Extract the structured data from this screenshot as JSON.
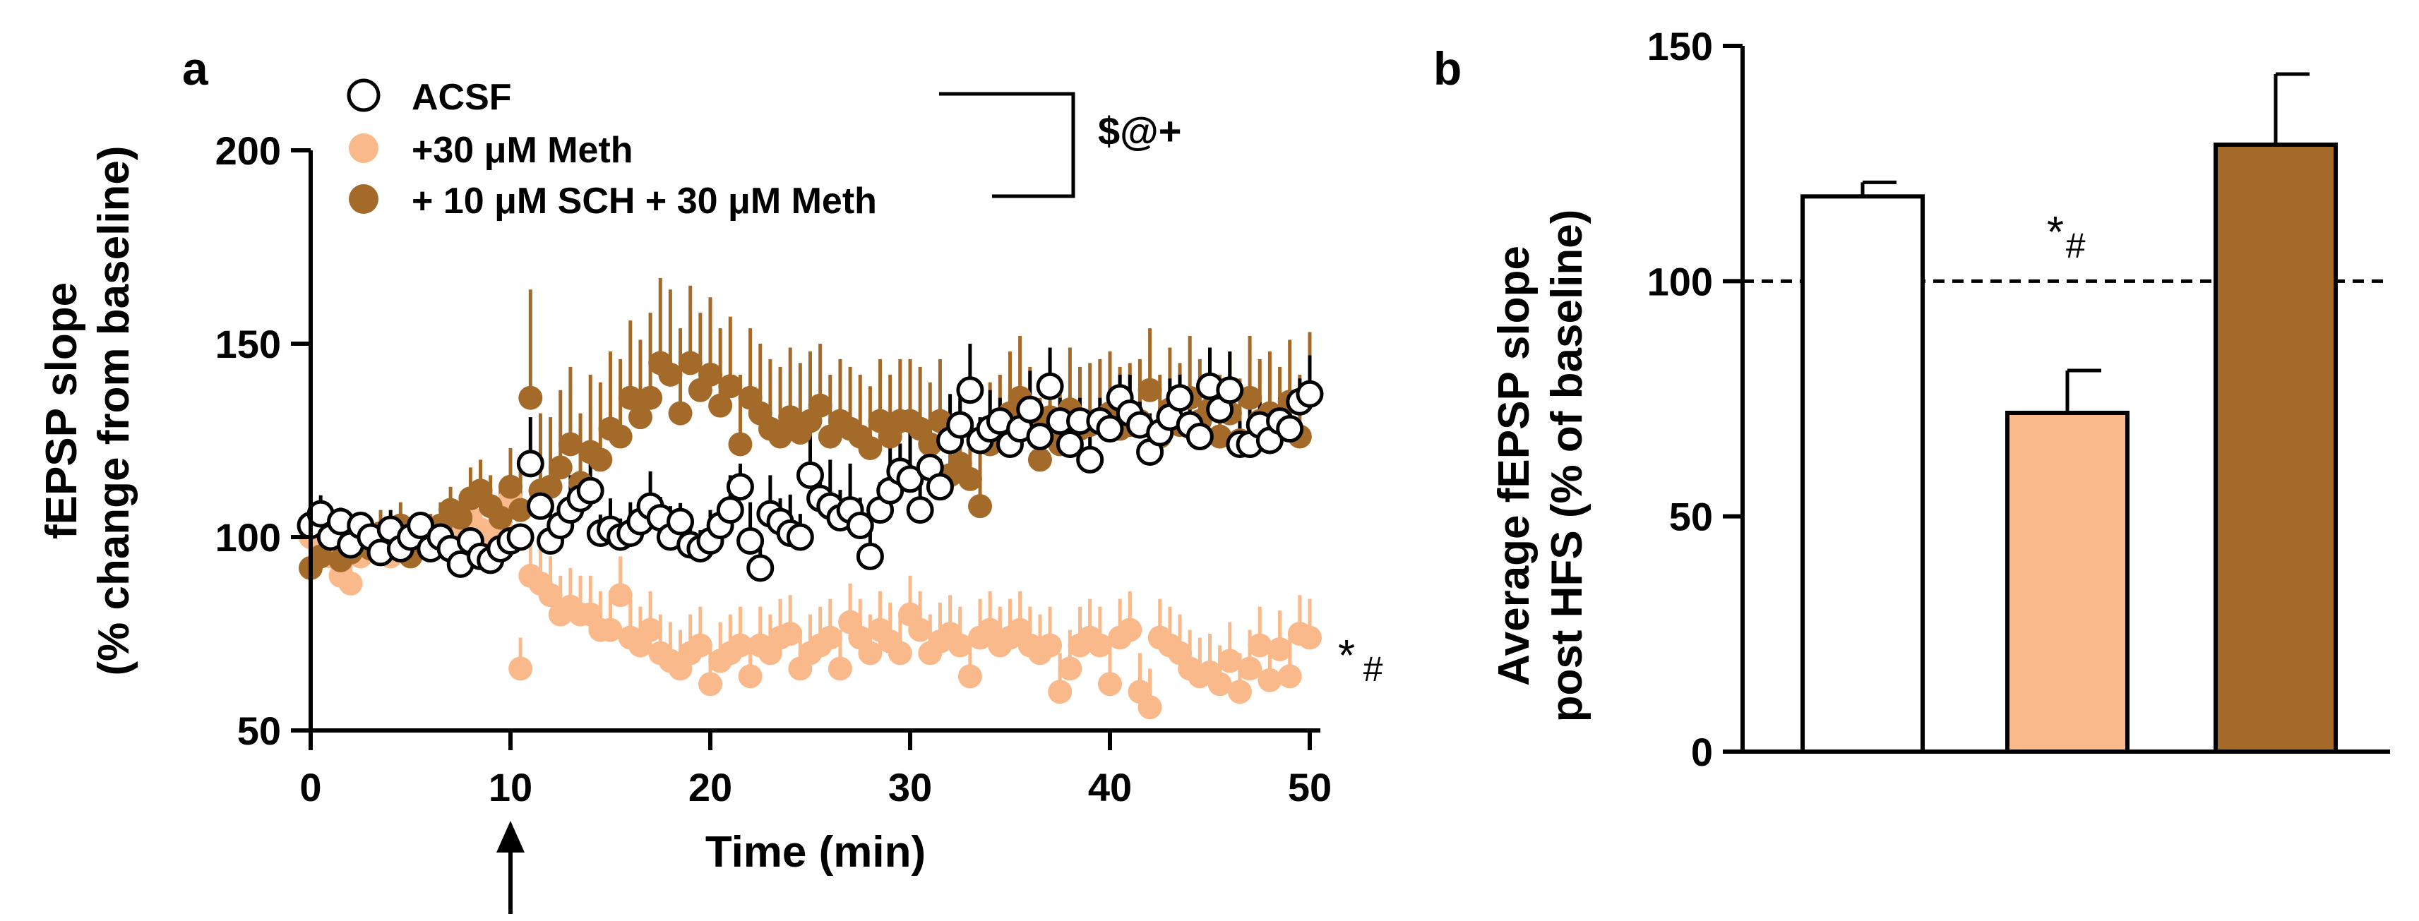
{
  "chart_data": [
    {
      "panel_label": "a",
      "type": "scatter",
      "xlabel": "Time (min)",
      "ylabel_line1": "fEPSP slope",
      "ylabel_line2": "(% change from baseline)",
      "xlim": [
        0,
        50
      ],
      "ylim": [
        50,
        200
      ],
      "xticks": [
        "0",
        "10",
        "20",
        "30",
        "40",
        "50"
      ],
      "yticks": [
        "50",
        "100",
        "150",
        "200"
      ],
      "arrow_at_x": 10,
      "stats_bracket_label": "$@+",
      "end_annotation": {
        "series": "+30 μM Meth",
        "star": "*",
        "hash": "#"
      },
      "series": [
        {
          "name": "ACSF",
          "legend": "ACSF",
          "fill": "#ffffff",
          "stroke": "#000000",
          "error_color": "#000000",
          "x": [
            0,
            0.5,
            1,
            1.5,
            2,
            2.5,
            3,
            3.5,
            4,
            4.5,
            5,
            5.5,
            6,
            6.5,
            7,
            7.5,
            8,
            8.5,
            9,
            9.5,
            10,
            10.5,
            11,
            11.5,
            12,
            12.5,
            13,
            13.5,
            14,
            14.5,
            15,
            15.5,
            16,
            16.5,
            17,
            17.5,
            18,
            18.5,
            19,
            19.5,
            20,
            20.5,
            21,
            21.5,
            22,
            22.5,
            23,
            23.5,
            24,
            24.5,
            25,
            25.5,
            26,
            26.5,
            27,
            27.5,
            28,
            28.5,
            29,
            29.5,
            30,
            30.5,
            31,
            31.5,
            32,
            32.5,
            33,
            33.5,
            34,
            34.5,
            35,
            35.5,
            36,
            36.5,
            37,
            37.5,
            38,
            38.5,
            39,
            39.5,
            40,
            40.5,
            41,
            41.5,
            42,
            42.5,
            43,
            43.5,
            44,
            44.5,
            45,
            45.5,
            46,
            46.5,
            47,
            47.5,
            48,
            48.5,
            49,
            49.5,
            50
          ],
          "y": [
            103,
            106,
            100,
            104,
            98,
            103,
            100,
            96,
            102,
            97,
            100,
            103,
            97,
            100,
            97,
            93,
            99,
            95,
            94,
            97,
            99,
            100,
            119,
            108,
            99,
            103,
            107,
            110,
            112,
            101,
            102,
            100,
            101,
            104,
            108,
            105,
            100,
            104,
            98,
            97,
            99,
            103,
            107,
            113,
            99,
            92,
            106,
            104,
            101,
            100,
            116,
            110,
            108,
            105,
            107,
            103,
            95,
            107,
            112,
            117,
            115,
            107,
            118,
            113,
            125,
            129,
            138,
            125,
            128,
            130,
            124,
            128,
            133,
            126,
            139,
            130,
            124,
            130,
            120,
            130,
            128,
            136,
            132,
            129,
            122,
            127,
            131,
            136,
            129,
            126,
            139,
            133,
            138,
            124,
            124,
            129,
            125,
            130,
            128,
            135,
            137
          ],
          "err": [
            8,
            8,
            6,
            6,
            5,
            5,
            5,
            5,
            5,
            5,
            5,
            5,
            5,
            5,
            5,
            5,
            5,
            5,
            5,
            5,
            5,
            5,
            12,
            10,
            8,
            8,
            9,
            9,
            9,
            8,
            8,
            8,
            8,
            8,
            9,
            9,
            8,
            8,
            8,
            8,
            8,
            8,
            9,
            10,
            10,
            10,
            10,
            10,
            10,
            10,
            12,
            12,
            12,
            12,
            12,
            12,
            12,
            12,
            12,
            12,
            12,
            12,
            12,
            12,
            12,
            12,
            12,
            10,
            10,
            10,
            10,
            10,
            10,
            10,
            10,
            10,
            10,
            10,
            10,
            10,
            10,
            10,
            10,
            10,
            10,
            10,
            10,
            10,
            10,
            10,
            10,
            10,
            10,
            10,
            10,
            10,
            10,
            10,
            10,
            10,
            10
          ]
        },
        {
          "name": "+30 μM Meth",
          "legend": "+30 μM Meth",
          "fill": "#f9b98a",
          "stroke": "#f9b98a",
          "error_color": "#f9b98a",
          "x": [
            0,
            0.5,
            1,
            1.5,
            2,
            2.5,
            3,
            3.5,
            4,
            4.5,
            5,
            5.5,
            6,
            6.5,
            7,
            7.5,
            8,
            8.5,
            9,
            9.5,
            10,
            10.5,
            11,
            11.5,
            12,
            12.5,
            13,
            13.5,
            14,
            14.5,
            15,
            15.5,
            16,
            16.5,
            17,
            17.5,
            18,
            18.5,
            19,
            19.5,
            20,
            20.5,
            21,
            21.5,
            22,
            22.5,
            23,
            23.5,
            24,
            24.5,
            25,
            25.5,
            26,
            26.5,
            27,
            27.5,
            28,
            28.5,
            29,
            29.5,
            30,
            30.5,
            31,
            31.5,
            32,
            32.5,
            33,
            33.5,
            34,
            34.5,
            35,
            35.5,
            36,
            36.5,
            37,
            37.5,
            38,
            38.5,
            39,
            39.5,
            40,
            40.5,
            41,
            41.5,
            42,
            42.5,
            43,
            43.5,
            44,
            44.5,
            45,
            45.5,
            46,
            46.5,
            47,
            47.5,
            48,
            48.5,
            49,
            49.5,
            50
          ],
          "y": [
            100,
            98,
            95,
            90,
            88,
            95,
            98,
            100,
            95,
            97,
            99,
            101,
            98,
            100,
            97,
            103,
            105,
            102,
            100,
            103,
            110,
            66,
            90,
            88,
            85,
            80,
            82,
            80,
            80,
            76,
            76,
            85,
            74,
            72,
            76,
            70,
            68,
            66,
            70,
            72,
            62,
            68,
            70,
            72,
            64,
            72,
            70,
            74,
            75,
            66,
            70,
            72,
            74,
            66,
            78,
            74,
            70,
            76,
            73,
            70,
            80,
            76,
            70,
            73,
            75,
            72,
            64,
            74,
            76,
            72,
            74,
            76,
            72,
            70,
            72,
            60,
            66,
            72,
            74,
            72,
            62,
            74,
            76,
            60,
            56,
            74,
            72,
            70,
            66,
            64,
            65,
            62,
            68,
            60,
            66,
            72,
            63,
            71,
            64,
            75,
            74
          ],
          "err": [
            5,
            5,
            5,
            5,
            5,
            5,
            5,
            5,
            5,
            5,
            5,
            5,
            5,
            5,
            5,
            5,
            6,
            6,
            6,
            6,
            6,
            8,
            10,
            10,
            10,
            10,
            10,
            10,
            10,
            10,
            10,
            10,
            10,
            10,
            10,
            10,
            10,
            10,
            10,
            10,
            10,
            10,
            10,
            10,
            10,
            10,
            10,
            10,
            10,
            10,
            10,
            10,
            10,
            10,
            10,
            10,
            10,
            10,
            10,
            10,
            10,
            10,
            10,
            10,
            10,
            10,
            10,
            10,
            10,
            10,
            10,
            10,
            10,
            10,
            10,
            10,
            10,
            10,
            10,
            10,
            10,
            10,
            10,
            10,
            10,
            10,
            10,
            10,
            10,
            10,
            10,
            10,
            10,
            10,
            10,
            10,
            10,
            10,
            10,
            10,
            10
          ]
        },
        {
          "name": "+ 10 μM SCH + 30 μM Meth",
          "legend": "+ 10 μM SCH + 30 μM Meth",
          "fill": "#a46a2a",
          "stroke": "#a46a2a",
          "error_color": "#a46a2a",
          "x": [
            0,
            0.5,
            1,
            1.5,
            2,
            2.5,
            3,
            3.5,
            4,
            4.5,
            5,
            5.5,
            6,
            6.5,
            7,
            7.5,
            8,
            8.5,
            9,
            9.5,
            10,
            10.5,
            11,
            11.5,
            12,
            12.5,
            13,
            13.5,
            14,
            14.5,
            15,
            15.5,
            16,
            16.5,
            17,
            17.5,
            18,
            18.5,
            19,
            19.5,
            20,
            20.5,
            21,
            21.5,
            22,
            22.5,
            23,
            23.5,
            24,
            24.5,
            25,
            25.5,
            26,
            26.5,
            27,
            27.5,
            28,
            28.5,
            29,
            29.5,
            30,
            30.5,
            31,
            31.5,
            32,
            32.5,
            33,
            33.5,
            34,
            34.5,
            35,
            35.5,
            36,
            36.5,
            37,
            37.5,
            38,
            38.5,
            39,
            39.5,
            40,
            40.5,
            41,
            41.5,
            42,
            42.5,
            43,
            43.5,
            44,
            44.5,
            45,
            45.5,
            46,
            46.5,
            47,
            47.5,
            48,
            48.5,
            49,
            49.5,
            50
          ],
          "y": [
            92,
            95,
            100,
            94,
            96,
            98,
            97,
            101,
            100,
            103,
            95,
            98,
            100,
            103,
            107,
            105,
            110,
            112,
            108,
            105,
            113,
            107,
            136,
            112,
            113,
            118,
            124,
            114,
            122,
            120,
            128,
            126,
            136,
            131,
            136,
            145,
            142,
            132,
            145,
            138,
            142,
            134,
            139,
            124,
            136,
            132,
            128,
            126,
            131,
            127,
            130,
            134,
            126,
            130,
            128,
            126,
            123,
            130,
            126,
            130,
            130,
            128,
            124,
            130,
            116,
            119,
            115,
            108,
            124,
            126,
            132,
            136,
            128,
            120,
            131,
            124,
            133,
            128,
            129,
            130,
            132,
            128,
            129,
            130,
            138,
            126,
            133,
            129,
            136,
            130,
            133,
            126,
            132,
            125,
            136,
            130,
            132,
            128,
            135,
            126,
            137
          ],
          "err": [
            6,
            6,
            6,
            6,
            6,
            6,
            6,
            6,
            6,
            6,
            6,
            6,
            6,
            6,
            6,
            6,
            8,
            8,
            8,
            8,
            10,
            10,
            28,
            20,
            18,
            20,
            20,
            18,
            20,
            20,
            20,
            20,
            20,
            20,
            22,
            22,
            22,
            22,
            20,
            20,
            20,
            20,
            18,
            18,
            18,
            18,
            18,
            18,
            18,
            18,
            18,
            16,
            16,
            16,
            16,
            16,
            16,
            16,
            16,
            16,
            16,
            16,
            16,
            16,
            16,
            16,
            16,
            16,
            16,
            16,
            16,
            16,
            16,
            16,
            16,
            16,
            16,
            16,
            16,
            16,
            16,
            16,
            16,
            16,
            16,
            16,
            16,
            16,
            16,
            16,
            16,
            16,
            16,
            16,
            16,
            16,
            16,
            16,
            16,
            16,
            16
          ]
        }
      ]
    },
    {
      "panel_label": "b",
      "type": "bar",
      "ylabel_line1": "Average fEPSP slope",
      "ylabel_line2": "post HFS (% of baseline)",
      "ylim": [
        0,
        150
      ],
      "yticks": [
        "0",
        "50",
        "100",
        "150"
      ],
      "reference_line": 100,
      "categories": [
        "ACSF",
        "+30 μM Meth",
        "+ 10 μM SCH + 30 μM Meth"
      ],
      "values": [
        118,
        72,
        129
      ],
      "errors": [
        3,
        9,
        15
      ],
      "colors": [
        "#ffffff",
        "#f9b98a",
        "#a46a2a"
      ],
      "annotations": [
        {
          "category": "+30 μM Meth",
          "star": "*",
          "hash": "#"
        }
      ]
    }
  ]
}
